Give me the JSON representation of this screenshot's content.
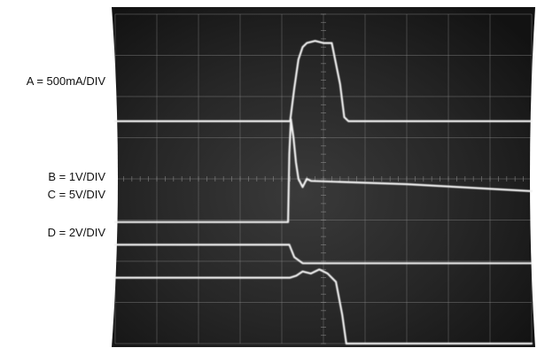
{
  "chart_data": {
    "type": "line",
    "title": "",
    "xlabel": "",
    "ylabel": "",
    "grid": true,
    "xlim": [
      0,
      10
    ],
    "ylim": [
      -4,
      4
    ],
    "channel_labels": [
      {
        "id": "A",
        "text": "A = 500mA/DIV"
      },
      {
        "id": "B",
        "text": "B = 1V/DIV"
      },
      {
        "id": "C",
        "text": "C = 5V/DIV"
      },
      {
        "id": "D",
        "text": "D = 2V/DIV"
      }
    ],
    "series": [
      {
        "id": "A",
        "x": [
          0,
          4.2,
          4.3,
          4.4,
          4.5,
          4.6,
          4.8,
          5.0,
          5.2,
          5.4,
          5.5,
          5.6,
          5.8,
          10
        ],
        "y": [
          1.4,
          1.4,
          2.2,
          2.9,
          3.2,
          3.3,
          3.35,
          3.3,
          3.3,
          2.3,
          1.5,
          1.4,
          1.4,
          1.4
        ]
      },
      {
        "id": "B",
        "x": [
          0,
          4.15,
          4.18,
          4.22,
          4.28,
          4.34,
          4.4,
          4.5,
          4.6,
          4.7,
          7,
          10
        ],
        "y": [
          -1.05,
          -1.05,
          0.6,
          1.45,
          1.0,
          0.4,
          0.0,
          -0.2,
          0.0,
          -0.05,
          -0.13,
          -0.3
        ]
      },
      {
        "id": "C",
        "x": [
          0,
          4.18,
          4.3,
          4.5,
          4.7,
          10
        ],
        "y": [
          -1.6,
          -1.6,
          -1.9,
          -2.05,
          -2.05,
          -2.05
        ]
      },
      {
        "id": "D",
        "x": [
          0,
          4.2,
          4.35,
          4.5,
          4.7,
          4.9,
          5.1,
          5.3,
          5.45,
          5.55,
          5.75,
          10
        ],
        "y": [
          -2.4,
          -2.4,
          -2.35,
          -2.25,
          -2.3,
          -2.2,
          -2.3,
          -2.5,
          -3.3,
          -4.0,
          -4.0,
          -4.0
        ]
      }
    ]
  }
}
